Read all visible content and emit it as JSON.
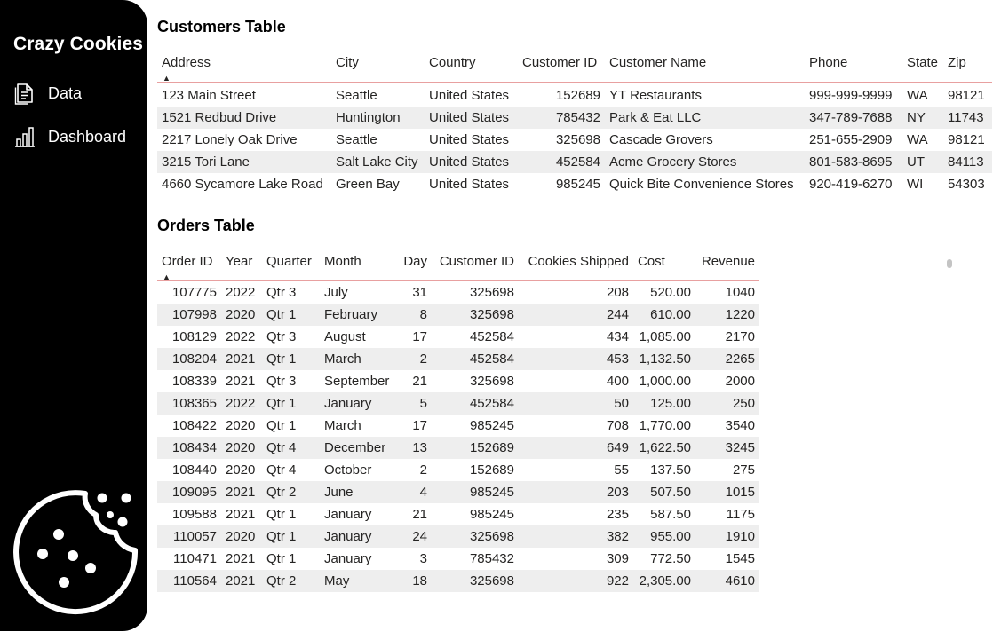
{
  "sidebar": {
    "brand": "Crazy Cookies",
    "nav": [
      {
        "label": "Data",
        "icon": "document-icon"
      },
      {
        "label": "Dashboard",
        "icon": "bar-chart-icon"
      }
    ],
    "logo_icon": "cookie-icon"
  },
  "customers": {
    "title": "Customers Table",
    "columns": [
      "Address",
      "City",
      "Country",
      "Customer ID",
      "Customer Name",
      "Phone",
      "State",
      "Zip"
    ],
    "rows": [
      [
        "123 Main Street",
        "Seattle",
        "United States",
        "152689",
        "YT Restaurants",
        "999-999-9999",
        "WA",
        "98121"
      ],
      [
        "1521 Redbud Drive",
        "Huntington",
        "United States",
        "785432",
        "Park & Eat LLC",
        "347-789-7688",
        "NY",
        "11743"
      ],
      [
        "2217 Lonely Oak Drive",
        "Seattle",
        "United States",
        "325698",
        "Cascade Grovers",
        "251-655-2909",
        "WA",
        "98121"
      ],
      [
        "3215 Tori Lane",
        "Salt Lake City",
        "United States",
        "452584",
        "Acme Grocery Stores",
        "801-583-8695",
        "UT",
        "84113"
      ],
      [
        "4660 Sycamore Lake Road",
        "Green Bay",
        "United States",
        "985245",
        "Quick Bite Convenience Stores",
        "920-419-6270",
        "WI",
        "54303"
      ]
    ]
  },
  "orders": {
    "title": "Orders Table",
    "columns": [
      "Order ID",
      "Year",
      "Quarter",
      "Month",
      "Day",
      "Customer ID",
      "Cookies Shipped",
      "Cost",
      "Revenue"
    ],
    "rows": [
      [
        "107775",
        "2022",
        "Qtr 3",
        "July",
        "31",
        "325698",
        "208",
        "520.00",
        "1040"
      ],
      [
        "107998",
        "2020",
        "Qtr 1",
        "February",
        "8",
        "325698",
        "244",
        "610.00",
        "1220"
      ],
      [
        "108129",
        "2022",
        "Qtr 3",
        "August",
        "17",
        "452584",
        "434",
        "1,085.00",
        "2170"
      ],
      [
        "108204",
        "2021",
        "Qtr 1",
        "March",
        "2",
        "452584",
        "453",
        "1,132.50",
        "2265"
      ],
      [
        "108339",
        "2021",
        "Qtr 3",
        "September",
        "21",
        "325698",
        "400",
        "1,000.00",
        "2000"
      ],
      [
        "108365",
        "2022",
        "Qtr 1",
        "January",
        "5",
        "452584",
        "50",
        "125.00",
        "250"
      ],
      [
        "108422",
        "2020",
        "Qtr 1",
        "March",
        "17",
        "985245",
        "708",
        "1,770.00",
        "3540"
      ],
      [
        "108434",
        "2020",
        "Qtr 4",
        "December",
        "13",
        "152689",
        "649",
        "1,622.50",
        "3245"
      ],
      [
        "108440",
        "2020",
        "Qtr 4",
        "October",
        "2",
        "152689",
        "55",
        "137.50",
        "275"
      ],
      [
        "109095",
        "2021",
        "Qtr 2",
        "June",
        "4",
        "985245",
        "203",
        "507.50",
        "1015"
      ],
      [
        "109588",
        "2021",
        "Qtr 1",
        "January",
        "21",
        "985245",
        "235",
        "587.50",
        "1175"
      ],
      [
        "110057",
        "2020",
        "Qtr 1",
        "January",
        "24",
        "325698",
        "382",
        "955.00",
        "1910"
      ],
      [
        "110471",
        "2021",
        "Qtr 1",
        "January",
        "3",
        "785432",
        "309",
        "772.50",
        "1545"
      ],
      [
        "110564",
        "2021",
        "Qtr 2",
        "May",
        "18",
        "325698",
        "922",
        "2,305.00",
        "4610"
      ]
    ]
  }
}
